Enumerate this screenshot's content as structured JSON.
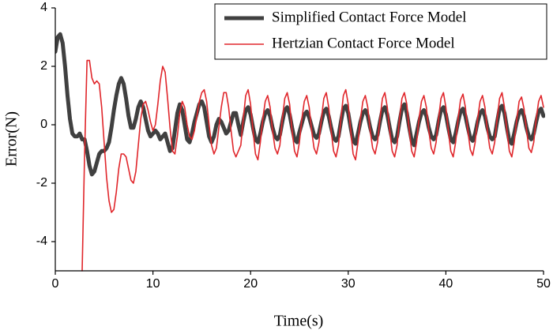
{
  "chart_data": {
    "type": "line",
    "x_label": "Time(s)",
    "y_label": "Error(N)",
    "xlim": [
      0,
      50
    ],
    "xticks": [
      0,
      10,
      20,
      30,
      40,
      50
    ],
    "ylim": [
      -5,
      4
    ],
    "yticks": [
      -4,
      -2,
      0,
      2,
      4
    ],
    "legend": "upper right",
    "x": [
      0,
      0.25,
      0.5,
      0.75,
      1,
      1.25,
      1.5,
      1.75,
      2,
      2.25,
      2.5,
      2.75,
      3,
      3.25,
      3.5,
      3.75,
      4,
      4.25,
      4.5,
      4.75,
      5,
      5.25,
      5.5,
      5.75,
      6,
      6.25,
      6.5,
      6.75,
      7,
      7.25,
      7.5,
      7.75,
      8,
      8.25,
      8.5,
      8.75,
      9,
      9.25,
      9.5,
      9.75,
      10,
      10.25,
      10.5,
      10.75,
      11,
      11.25,
      11.5,
      11.75,
      12,
      12.25,
      12.5,
      12.75,
      13,
      13.25,
      13.5,
      13.75,
      14,
      14.25,
      14.5,
      14.75,
      15,
      15.25,
      15.5,
      15.75,
      16,
      16.25,
      16.5,
      16.75,
      17,
      17.25,
      17.5,
      17.75,
      18,
      18.25,
      18.5,
      18.75,
      19,
      19.25,
      19.5,
      19.75,
      20,
      20.25,
      20.5,
      20.75,
      21,
      21.25,
      21.5,
      21.75,
      22,
      22.25,
      22.5,
      22.75,
      23,
      23.25,
      23.5,
      23.75,
      24,
      24.25,
      24.5,
      24.75,
      25,
      25.25,
      25.5,
      25.75,
      26,
      26.25,
      26.5,
      26.75,
      27,
      27.25,
      27.5,
      27.75,
      28,
      28.25,
      28.5,
      28.75,
      29,
      29.25,
      29.5,
      29.75,
      30,
      30.25,
      30.5,
      30.75,
      31,
      31.25,
      31.5,
      31.75,
      32,
      32.25,
      32.5,
      32.75,
      33,
      33.25,
      33.5,
      33.75,
      34,
      34.25,
      34.5,
      34.75,
      35,
      35.25,
      35.5,
      35.75,
      36,
      36.25,
      36.5,
      36.75,
      37,
      37.25,
      37.5,
      37.75,
      38,
      38.25,
      38.5,
      38.75,
      39,
      39.25,
      39.5,
      39.75,
      40,
      40.25,
      40.5,
      40.75,
      41,
      41.25,
      41.5,
      41.75,
      42,
      42.25,
      42.5,
      42.75,
      43,
      43.25,
      43.5,
      43.75,
      44,
      44.25,
      44.5,
      44.75,
      45,
      45.25,
      45.5,
      45.75,
      46,
      46.25,
      46.5,
      46.75,
      47,
      47.25,
      47.5,
      47.75,
      48,
      48.25,
      48.5,
      48.75,
      49,
      49.25,
      49.5,
      49.75,
      50
    ],
    "series": [
      {
        "name": "Simplified Contact Force Model",
        "color": "#404040",
        "width": 5,
        "values": [
          2.5,
          3.0,
          3.1,
          2.8,
          2.0,
          1.0,
          0.2,
          -0.3,
          -0.4,
          -0.4,
          -0.3,
          -0.5,
          -0.5,
          -0.9,
          -1.4,
          -1.7,
          -1.6,
          -1.3,
          -1.0,
          -0.9,
          -0.9,
          -0.8,
          -0.6,
          -0.1,
          0.5,
          1.0,
          1.4,
          1.6,
          1.4,
          0.9,
          0.3,
          -0.1,
          -0.1,
          0.2,
          0.6,
          0.8,
          0.6,
          0.2,
          -0.2,
          -0.4,
          -0.3,
          -0.2,
          -0.3,
          -0.5,
          -0.4,
          -0.3,
          -0.6,
          -0.9,
          -0.8,
          -0.2,
          0.4,
          0.7,
          0.5,
          0.0,
          -0.5,
          -0.6,
          -0.3,
          0.1,
          0.4,
          0.7,
          0.8,
          0.6,
          0.1,
          -0.4,
          -0.6,
          -0.4,
          0.0,
          0.2,
          0.1,
          -0.1,
          -0.3,
          -0.2,
          0.1,
          0.4,
          0.4,
          0.0,
          -0.35,
          0.1,
          0.5,
          0.6,
          0.35,
          -0.1,
          -0.5,
          -0.6,
          -0.3,
          0.1,
          0.4,
          0.5,
          0.3,
          -0.1,
          -0.4,
          -0.5,
          -0.35,
          0.1,
          0.5,
          0.6,
          0.35,
          -0.1,
          -0.5,
          -0.6,
          -0.25,
          0.05,
          0.35,
          0.45,
          0.25,
          -0.05,
          -0.35,
          -0.45,
          -0.3,
          0.1,
          0.45,
          0.55,
          0.3,
          -0.1,
          -0.45,
          -0.55,
          -0.4,
          0.1,
          0.55,
          0.65,
          0.4,
          -0.1,
          -0.55,
          -0.65,
          -0.3,
          0.1,
          0.4,
          0.5,
          0.3,
          -0.1,
          -0.4,
          -0.5,
          -0.35,
          0.1,
          0.5,
          0.6,
          0.35,
          -0.1,
          -0.5,
          -0.6,
          -0.4,
          0.1,
          0.55,
          0.7,
          0.4,
          -0.1,
          -0.55,
          -0.7,
          -0.3,
          0.1,
          0.4,
          0.5,
          0.3,
          -0.1,
          -0.4,
          -0.5,
          -0.35,
          0.1,
          0.5,
          0.6,
          0.35,
          -0.1,
          -0.5,
          -0.6,
          -0.3,
          0.1,
          0.45,
          0.55,
          0.3,
          -0.1,
          -0.45,
          -0.55,
          -0.3,
          0.1,
          0.4,
          0.5,
          0.3,
          -0.1,
          -0.4,
          -0.5,
          -0.4,
          0.1,
          0.55,
          0.65,
          0.4,
          -0.1,
          -0.55,
          -0.65,
          -0.3,
          0.1,
          0.4,
          0.5,
          0.3,
          -0.1,
          -0.4,
          -0.5,
          -0.3,
          0.1,
          0.45,
          0.55,
          0.3
        ]
      },
      {
        "name": "Hertzian Contact Force Model",
        "color": "#e0262b",
        "width": 1.6,
        "values": [
          null,
          null,
          null,
          null,
          null,
          null,
          null,
          null,
          null,
          null,
          null,
          -5,
          -1.0,
          2.2,
          2.2,
          1.6,
          1.4,
          1.5,
          1.4,
          0.6,
          -0.6,
          -1.8,
          -2.6,
          -3.0,
          -2.9,
          -2.3,
          -1.5,
          -1.0,
          -1.0,
          -1.1,
          -1.5,
          -1.9,
          -2.0,
          -1.6,
          -0.7,
          0.2,
          0.7,
          0.8,
          0.5,
          0.1,
          -0.2,
          0.0,
          0.7,
          1.5,
          2.0,
          1.8,
          0.9,
          -0.1,
          -0.9,
          -1.0,
          -0.4,
          0.4,
          0.8,
          0.6,
          0.0,
          -0.4,
          -0.5,
          -0.2,
          0.3,
          0.8,
          1.1,
          1.2,
          0.8,
          0.0,
          -0.7,
          -1.0,
          -0.8,
          -0.1,
          0.6,
          1.1,
          1.1,
          0.6,
          -0.2,
          -0.9,
          -1.1,
          -0.9,
          -0.7,
          0.2,
          1.0,
          1.2,
          0.7,
          -0.2,
          -1.0,
          -1.2,
          -0.6,
          0.2,
          0.8,
          1.0,
          0.6,
          -0.2,
          -0.8,
          -1.0,
          -0.7,
          0.2,
          0.9,
          1.1,
          0.7,
          -0.2,
          -0.9,
          -1.1,
          -0.6,
          0.2,
          0.8,
          1.0,
          0.6,
          -0.2,
          -0.8,
          -1.0,
          -0.6,
          0.2,
          0.9,
          1.1,
          0.6,
          -0.2,
          -0.9,
          -1.1,
          -0.7,
          0.2,
          1.0,
          1.2,
          0.7,
          -0.2,
          -1.0,
          -1.2,
          -0.6,
          0.2,
          0.8,
          1.0,
          0.6,
          -0.2,
          -0.8,
          -1.0,
          -0.6,
          0.2,
          0.9,
          1.1,
          0.6,
          -0.2,
          -0.9,
          -1.1,
          -0.7,
          0.2,
          0.9,
          1.1,
          0.7,
          -0.2,
          -0.9,
          -1.1,
          -0.6,
          0.2,
          0.8,
          1.0,
          0.6,
          -0.2,
          -0.8,
          -1.0,
          -0.6,
          0.2,
          0.9,
          1.1,
          0.6,
          -0.2,
          -0.9,
          -1.1,
          -0.6,
          0.2,
          0.85,
          1.05,
          0.6,
          -0.2,
          -0.85,
          -1.05,
          -0.6,
          0.2,
          0.8,
          1.0,
          0.6,
          -0.2,
          -0.8,
          -1.0,
          -0.6,
          0.2,
          0.9,
          1.1,
          0.6,
          -0.2,
          -0.9,
          -1.1,
          -0.6,
          0.15,
          0.8,
          0.95,
          0.55,
          -0.15,
          -0.8,
          -0.95,
          -0.6,
          0.2,
          0.8,
          1.0,
          0.6
        ]
      }
    ]
  }
}
